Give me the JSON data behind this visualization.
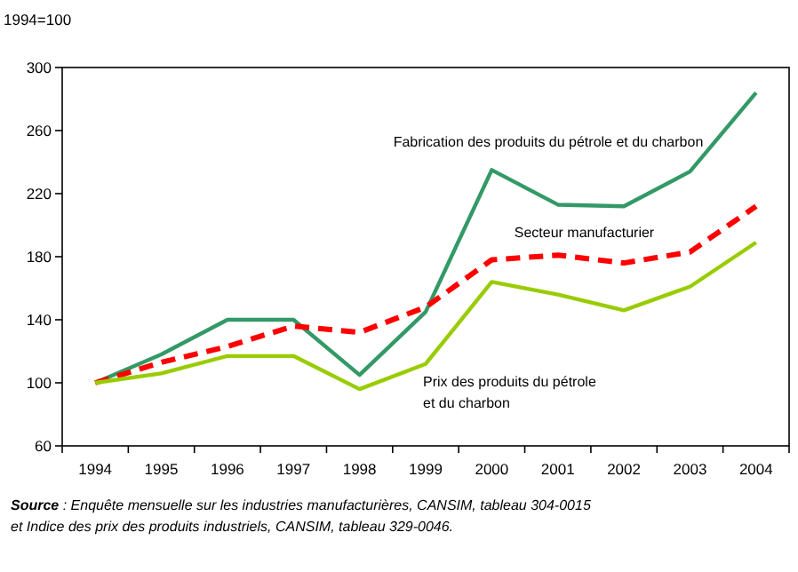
{
  "chart_data": {
    "type": "line",
    "ylabel": "1994=100",
    "categories": [
      "1994",
      "1995",
      "1996",
      "1997",
      "1998",
      "1999",
      "2000",
      "2001",
      "2002",
      "2003",
      "2004"
    ],
    "series": [
      {
        "name": "Fabrication des produits du pétrole et du charbon",
        "color": "#339966",
        "line_style": "solid",
        "values": [
          100,
          118,
          140,
          140,
          105,
          145,
          235,
          213,
          212,
          234,
          284
        ]
      },
      {
        "name": "Secteur manufacturier",
        "color": "#ff0000",
        "line_style": "dashed",
        "values": [
          100,
          113,
          123,
          136,
          132,
          148,
          178,
          181,
          176,
          183,
          212
        ]
      },
      {
        "name": "Prix des produits du pétrole et du charbon",
        "color": "#99cc00",
        "line_style": "solid",
        "values": [
          100,
          106,
          117,
          117,
          96,
          112,
          164,
          156,
          146,
          161,
          189
        ]
      }
    ],
    "ylim": [
      60,
      300
    ],
    "yticks": [
      60,
      100,
      140,
      180,
      220,
      260,
      300
    ],
    "grid": false,
    "legend": false,
    "marker": "none",
    "annotations": [
      "Source : Enquête mensuelle sur les industries manufacturières, CANSIM, tableau 304-0015 et Indice des prix des produits industriels, CANSIM, tableau 329-0046."
    ]
  }
}
